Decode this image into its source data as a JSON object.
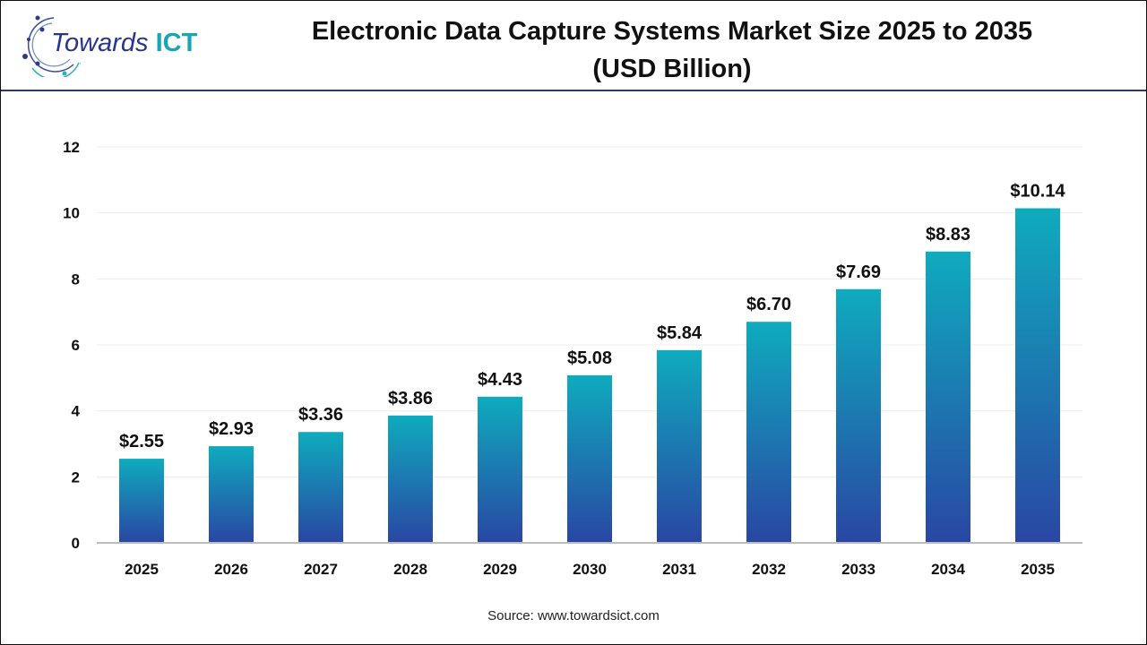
{
  "header": {
    "title_line1": "Electronic Data Capture Systems Market Size 2025 to 2035",
    "title_line2": "(USD Billion)"
  },
  "logo": {
    "text_a": "Towards ",
    "text_b": "ICT"
  },
  "source": "Source: www.towardsict.com",
  "colors": {
    "bar_top": "#0fabbe",
    "bar_bottom": "#2947a3",
    "logo_blue": "#27358a",
    "logo_teal": "#16a7b6"
  },
  "chart_data": {
    "type": "bar",
    "title": "Electronic Data Capture Systems Market Size 2025 to 2035 (USD Billion)",
    "categories": [
      "2025",
      "2026",
      "2027",
      "2028",
      "2029",
      "2030",
      "2031",
      "2032",
      "2033",
      "2034",
      "2035"
    ],
    "values": [
      2.55,
      2.93,
      3.36,
      3.86,
      4.43,
      5.08,
      5.84,
      6.7,
      7.69,
      8.83,
      10.14
    ],
    "data_labels": [
      "$2.55",
      "$2.93",
      "$3.36",
      "$3.86",
      "$4.43",
      "$5.08",
      "$5.84",
      "$6.70",
      "$7.69",
      "$8.83",
      "$10.14"
    ],
    "yticks": [
      "0",
      "2",
      "4",
      "6",
      "8",
      "10",
      "12"
    ],
    "ylim": [
      0,
      12
    ],
    "grid": true,
    "xlabel": "",
    "ylabel": ""
  }
}
